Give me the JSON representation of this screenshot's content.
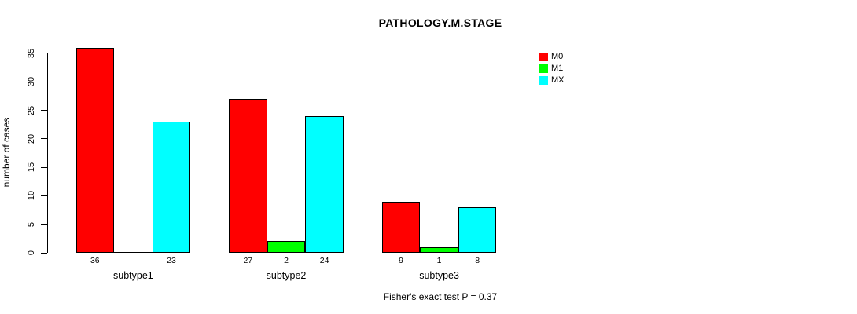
{
  "chart_data": {
    "type": "bar",
    "title": "PATHOLOGY.M.STAGE",
    "xlabel": "",
    "ylabel": "number of cases",
    "categories": [
      "subtype1",
      "subtype2",
      "subtype3"
    ],
    "series": [
      {
        "name": "M0",
        "color": "#ff0000",
        "values": [
          36,
          27,
          9
        ]
      },
      {
        "name": "M1",
        "color": "#00ff00",
        "values": [
          0,
          2,
          1
        ]
      },
      {
        "name": "MX",
        "color": "#00ffff",
        "values": [
          23,
          24,
          8
        ]
      }
    ],
    "value_labels": [
      [
        "36",
        "",
        "23"
      ],
      [
        "27",
        "2",
        "24"
      ],
      [
        "9",
        "1",
        "8"
      ]
    ],
    "yticks": [
      0,
      5,
      10,
      15,
      20,
      25,
      30,
      35
    ],
    "ylim": [
      0,
      36
    ],
    "grid": false,
    "bar_border_color": "#000000",
    "legend_position": "top-right",
    "annotation": "Fisher's exact test P = 0.37",
    "background_color": "#ffffff",
    "text_color": "#000000"
  }
}
